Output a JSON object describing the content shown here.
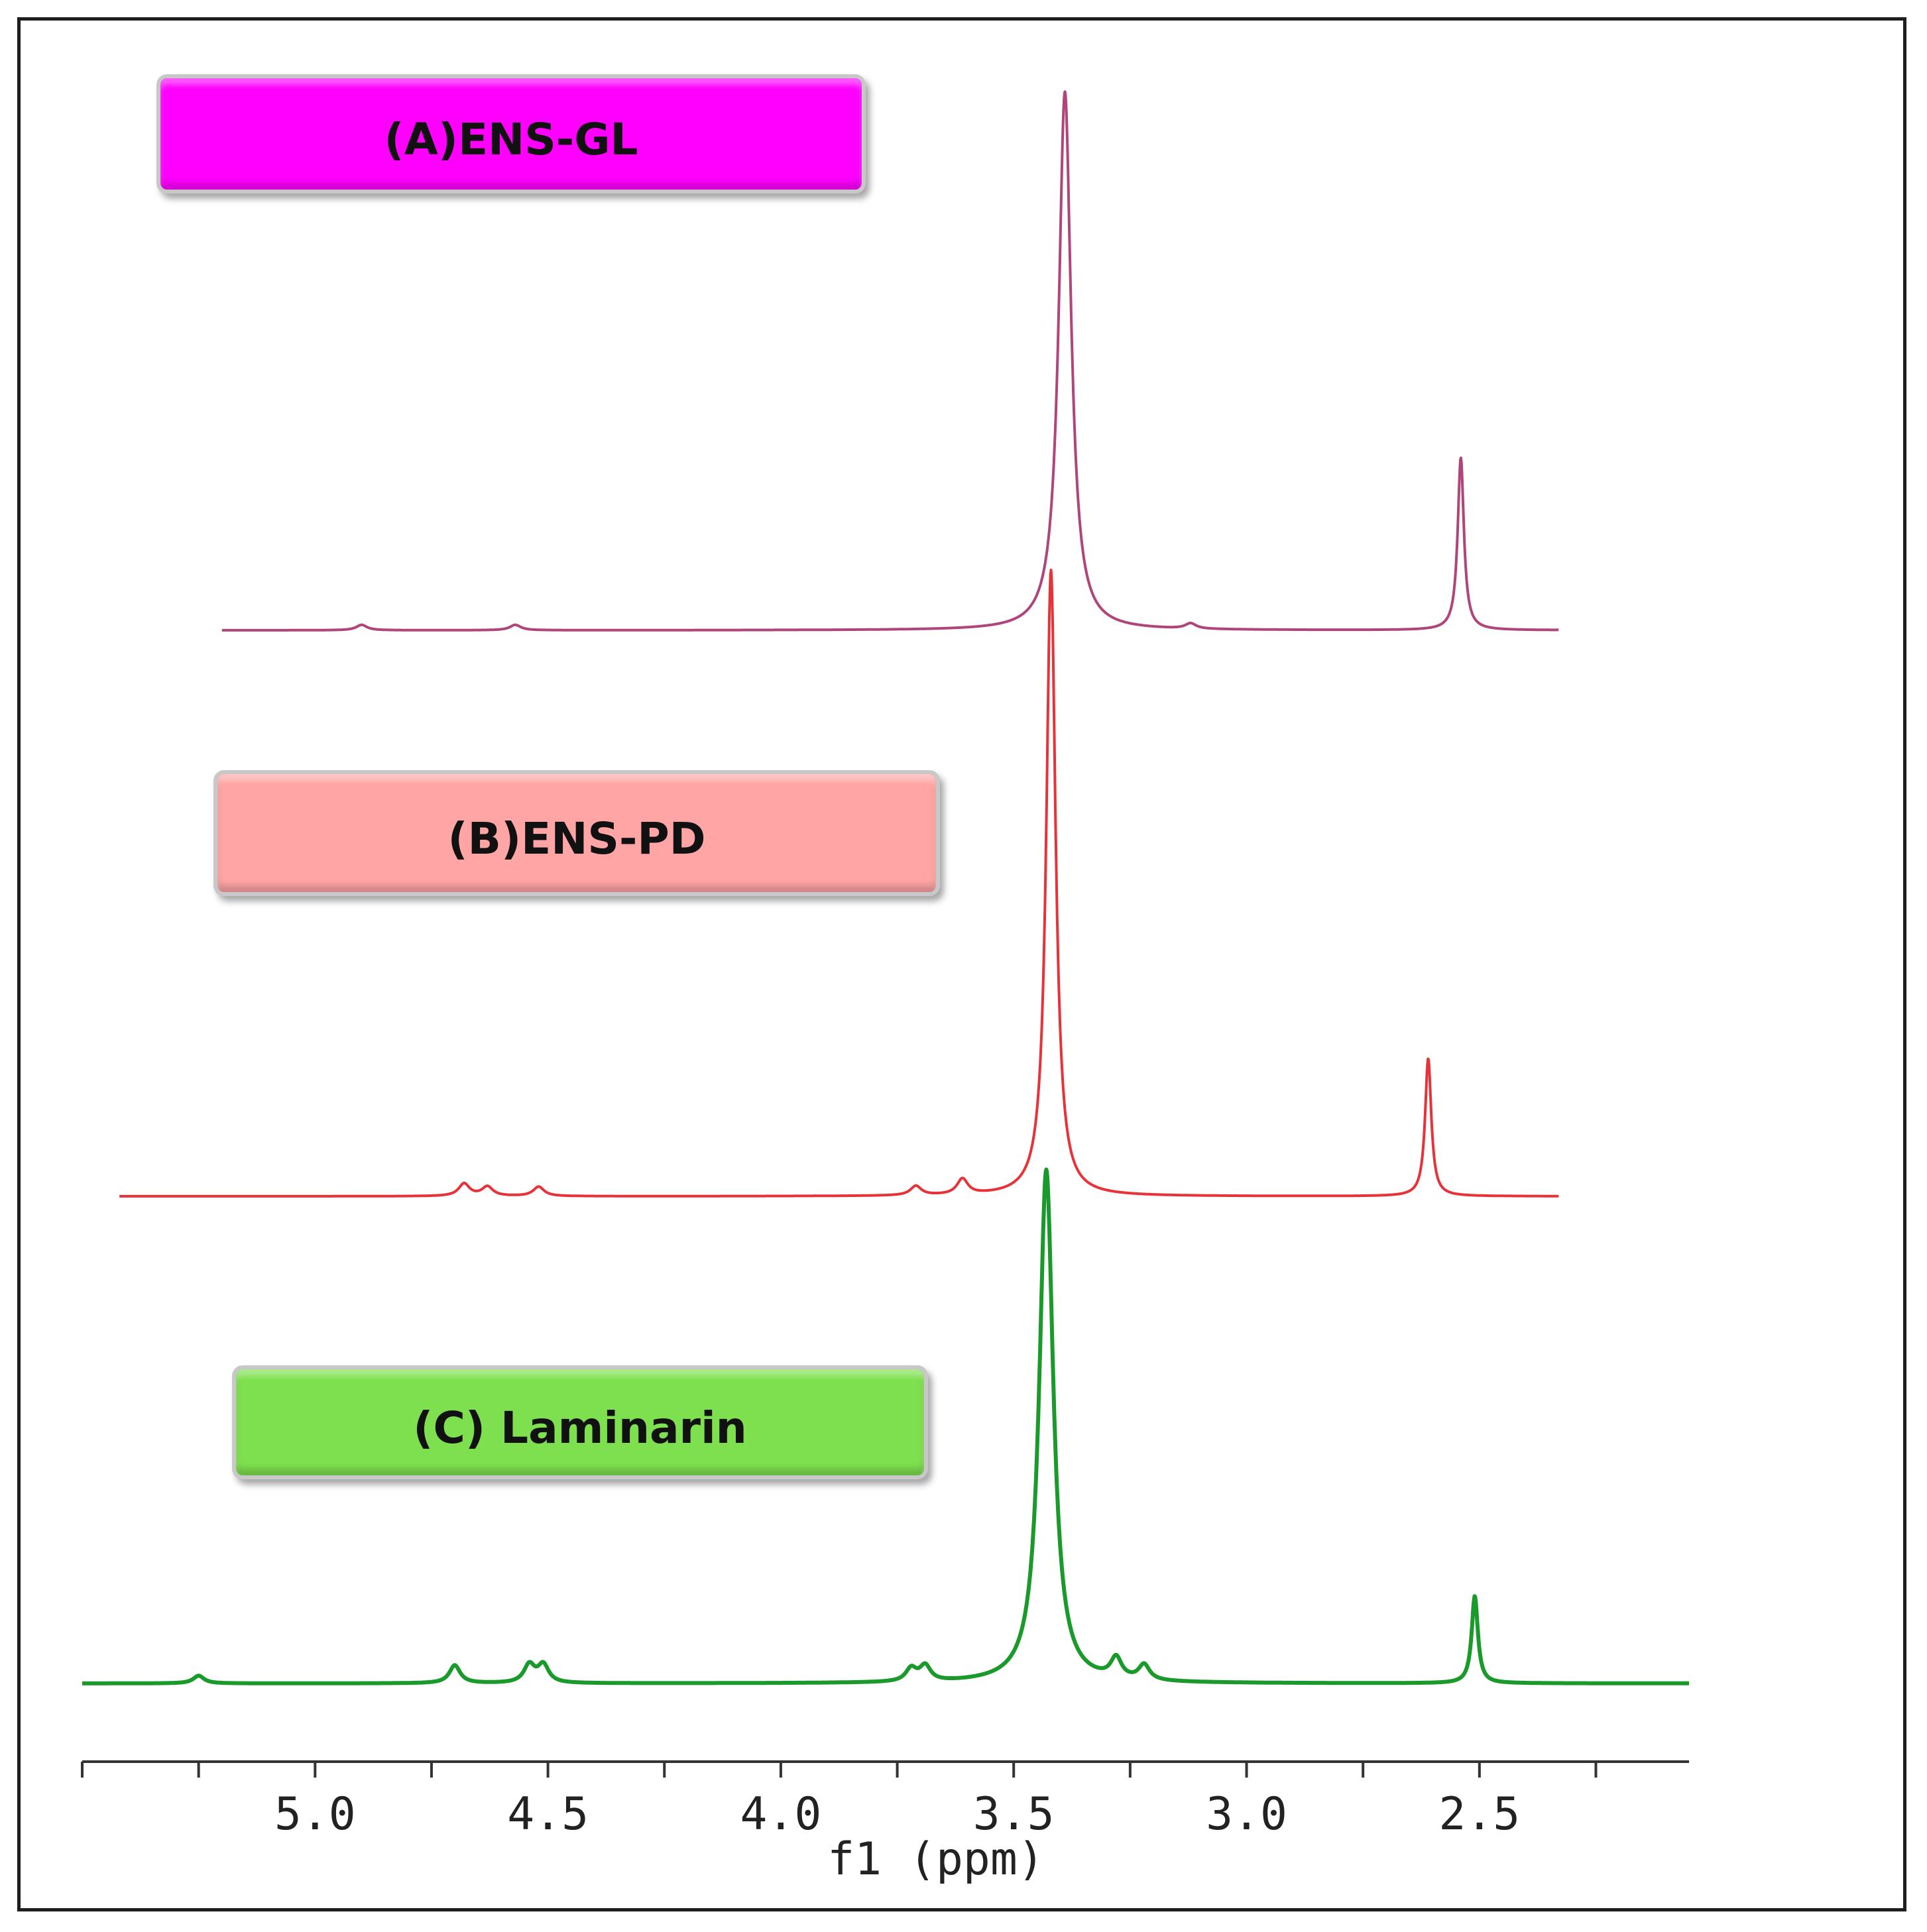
{
  "chart_data": {
    "type": "line",
    "title": "",
    "xlabel": "f1 (ppm)",
    "ylabel": "",
    "x_axis": {
      "direction": "reversed",
      "xlim": [
        5.5,
        2.05
      ],
      "ticks": [
        5.0,
        4.5,
        4.0,
        3.5,
        3.0,
        2.5
      ],
      "tick_labels": [
        "5.0",
        "4.5",
        "4.0",
        "3.5",
        "3.0",
        "2.5"
      ],
      "minor_ticks": [
        5.25,
        4.75,
        4.25,
        3.75,
        3.25,
        2.75,
        2.25
      ]
    },
    "grid": false,
    "series": [
      {
        "name": "(A)ENS-GL",
        "color": "#b0457a",
        "label_box_color": "#ff00ff",
        "x_range": [
          5.2,
          2.33
        ],
        "peaks": [
          {
            "x": 3.39,
            "intensity": 1.0
          },
          {
            "x": 2.54,
            "intensity": 0.32
          },
          {
            "x": 4.9,
            "intensity": 0.01
          },
          {
            "x": 4.57,
            "intensity": 0.01
          },
          {
            "x": 3.12,
            "intensity": 0.01
          }
        ]
      },
      {
        "name": "(B)ENS-PD",
        "color": "#e8323a",
        "label_box_color": "#ffa5a5",
        "x_range": [
          5.42,
          2.33
        ],
        "peaks": [
          {
            "x": 3.42,
            "intensity": 1.0
          },
          {
            "x": 2.61,
            "intensity": 0.22
          },
          {
            "x": 4.68,
            "intensity": 0.02
          },
          {
            "x": 4.63,
            "intensity": 0.015
          },
          {
            "x": 4.52,
            "intensity": 0.015
          },
          {
            "x": 3.71,
            "intensity": 0.015
          },
          {
            "x": 3.61,
            "intensity": 0.025
          }
        ]
      },
      {
        "name": "(C) Laminarin",
        "color": "#1a9a2a",
        "label_box_color": "#7ee04e",
        "x_range": [
          5.5,
          2.05
        ],
        "peaks": [
          {
            "x": 3.43,
            "intensity": 1.0
          },
          {
            "x": 2.51,
            "intensity": 0.17
          },
          {
            "x": 5.25,
            "intensity": 0.015
          },
          {
            "x": 4.7,
            "intensity": 0.035
          },
          {
            "x": 4.54,
            "intensity": 0.035
          },
          {
            "x": 4.51,
            "intensity": 0.035
          },
          {
            "x": 3.72,
            "intensity": 0.025
          },
          {
            "x": 3.69,
            "intensity": 0.03
          },
          {
            "x": 3.28,
            "intensity": 0.04
          },
          {
            "x": 3.22,
            "intensity": 0.03
          }
        ]
      }
    ]
  }
}
